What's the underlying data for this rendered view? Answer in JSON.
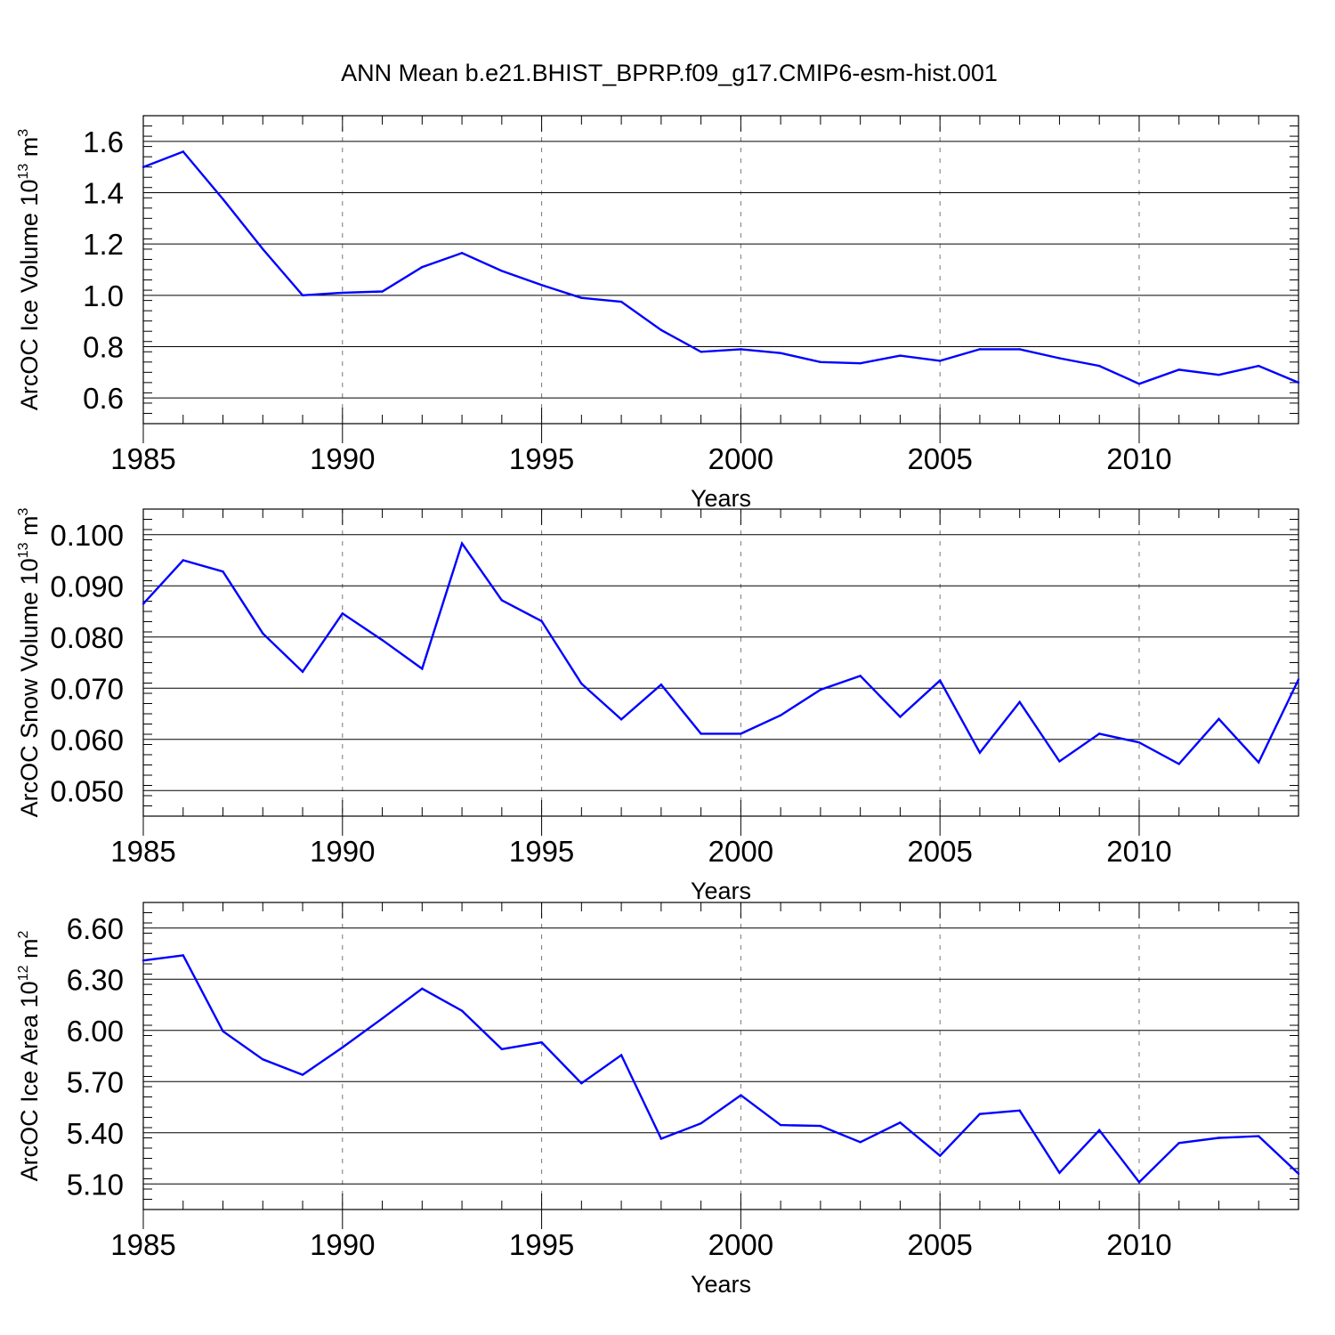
{
  "chart_data": {
    "title": "ANN Mean b.e21.BHIST_BPRP.f09_g17.CMIP6-esm-hist.001",
    "panels": [
      {
        "type": "line",
        "xlabel": "Years",
        "ylabel_text": "ArcOC Ice Volume 10",
        "ylabel_exp": "13",
        "ylabel_unit": " m",
        "ylabel_unit_exp": "3",
        "xlim": [
          1985,
          2014
        ],
        "ylim": [
          0.5,
          1.7
        ],
        "yticks": [
          0.6,
          0.8,
          1.0,
          1.2,
          1.4,
          1.6
        ],
        "ytick_labels": [
          "0.6",
          "0.8",
          "1.0",
          "1.2",
          "1.4",
          "1.6"
        ],
        "xticks": [
          1985,
          1990,
          1995,
          2000,
          2005,
          2010
        ],
        "xtick_labels": [
          "1985",
          "1990",
          "1995",
          "2000",
          "2005",
          "2010"
        ],
        "x": [
          1985,
          1986,
          1987,
          1988,
          1989,
          1990,
          1991,
          1992,
          1993,
          1994,
          1995,
          1996,
          1997,
          1998,
          1999,
          2000,
          2001,
          2002,
          2003,
          2004,
          2005,
          2006,
          2007,
          2008,
          2009,
          2010,
          2011,
          2012,
          2013,
          2014
        ],
        "values": [
          1.5,
          1.56,
          1.375,
          1.18,
          1.0,
          1.01,
          1.015,
          1.11,
          1.165,
          1.095,
          1.04,
          0.99,
          0.975,
          0.865,
          0.78,
          0.79,
          0.775,
          0.74,
          0.735,
          0.765,
          0.745,
          0.79,
          0.79,
          0.755,
          0.725,
          0.655,
          0.71,
          0.69,
          0.725,
          0.66
        ]
      },
      {
        "type": "line",
        "xlabel": "Years",
        "ylabel_text": "ArcOC Snow Volume 10",
        "ylabel_exp": "13",
        "ylabel_unit": " m",
        "ylabel_unit_exp": "3",
        "xlim": [
          1985,
          2014
        ],
        "ylim": [
          0.045,
          0.105
        ],
        "yticks": [
          0.05,
          0.06,
          0.07,
          0.08,
          0.09,
          0.1
        ],
        "ytick_labels": [
          "0.050",
          "0.060",
          "0.070",
          "0.080",
          "0.090",
          "0.100"
        ],
        "xticks": [
          1985,
          1990,
          1995,
          2000,
          2005,
          2010
        ],
        "xtick_labels": [
          "1985",
          "1990",
          "1995",
          "2000",
          "2005",
          "2010"
        ],
        "x": [
          1985,
          1986,
          1987,
          1988,
          1989,
          1990,
          1991,
          1992,
          1993,
          1994,
          1995,
          1996,
          1997,
          1998,
          1999,
          2000,
          2001,
          2002,
          2003,
          2004,
          2005,
          2006,
          2007,
          2008,
          2009,
          2010,
          2011,
          2012,
          2013,
          2014
        ],
        "values": [
          0.0865,
          0.095,
          0.0928,
          0.0807,
          0.0732,
          0.0846,
          0.0794,
          0.0738,
          0.0983,
          0.0872,
          0.0831,
          0.0709,
          0.0639,
          0.0707,
          0.0611,
          0.0611,
          0.0647,
          0.0697,
          0.0724,
          0.0644,
          0.0715,
          0.0574,
          0.0673,
          0.0557,
          0.0611,
          0.0594,
          0.0552,
          0.064,
          0.0555,
          0.0717
        ]
      },
      {
        "type": "line",
        "xlabel": "Years",
        "ylabel_text": "ArcOC Ice Area 10",
        "ylabel_exp": "12",
        "ylabel_unit": " m",
        "ylabel_unit_exp": "2",
        "xlim": [
          1985,
          2014
        ],
        "ylim": [
          4.95,
          6.75
        ],
        "yticks": [
          5.1,
          5.4,
          5.7,
          6.0,
          6.3,
          6.6
        ],
        "ytick_labels": [
          "5.10",
          "5.40",
          "5.70",
          "6.00",
          "6.30",
          "6.60"
        ],
        "xticks": [
          1985,
          1990,
          1995,
          2000,
          2005,
          2010
        ],
        "xtick_labels": [
          "1985",
          "1990",
          "1995",
          "2000",
          "2005",
          "2010"
        ],
        "x": [
          1985,
          1986,
          1987,
          1988,
          1989,
          1990,
          1991,
          1992,
          1993,
          1994,
          1995,
          1996,
          1997,
          1998,
          1999,
          2000,
          2001,
          2002,
          2003,
          2004,
          2005,
          2006,
          2007,
          2008,
          2009,
          2010,
          2011,
          2012,
          2013,
          2014
        ],
        "values": [
          6.41,
          6.44,
          5.995,
          5.83,
          5.74,
          5.9,
          6.07,
          6.245,
          6.115,
          5.89,
          5.93,
          5.69,
          5.855,
          5.365,
          5.455,
          5.62,
          5.445,
          5.44,
          5.345,
          5.46,
          5.265,
          5.51,
          5.53,
          5.165,
          5.415,
          5.11,
          5.34,
          5.37,
          5.38,
          5.16
        ]
      }
    ]
  },
  "colors": {
    "line": "#0000ff",
    "axis": "#000000",
    "grid": "#777777"
  }
}
